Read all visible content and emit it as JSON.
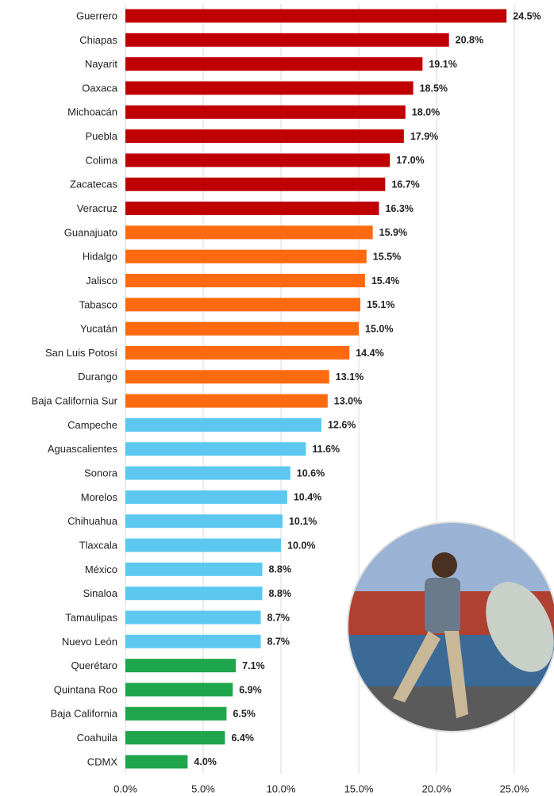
{
  "chart_data": {
    "type": "bar",
    "orientation": "horizontal",
    "categories": [
      "Guerrero",
      "Chiapas",
      "Nayarit",
      "Oaxaca",
      "Michoacán",
      "Puebla",
      "Colima",
      "Zacatecas",
      "Veracruz",
      "Guanajuato",
      "Hidalgo",
      "Jalisco",
      "Tabasco",
      "Yucatán",
      "San Luis Potosí",
      "Durango",
      "Baja California Sur",
      "Campeche",
      "Aguascalientes",
      "Sonora",
      "Morelos",
      "Chihuahua",
      "Tlaxcala",
      "México",
      "Sinaloa",
      "Tamaulipas",
      "Nuevo León",
      "Querétaro",
      "Quintana Roo",
      "Baja California",
      "Coahuila",
      "CDMX"
    ],
    "values": [
      24.5,
      20.8,
      19.1,
      18.5,
      18.0,
      17.9,
      17.0,
      16.7,
      16.3,
      15.9,
      15.5,
      15.4,
      15.1,
      15.0,
      14.4,
      13.1,
      13.0,
      12.6,
      11.6,
      10.6,
      10.4,
      10.1,
      10.0,
      8.8,
      8.8,
      8.7,
      8.7,
      7.1,
      6.9,
      6.5,
      6.4,
      4.0
    ],
    "value_labels": [
      "24.5%",
      "20.8%",
      "19.1%",
      "18.5%",
      "18.0%",
      "17.9%",
      "17.0%",
      "16.7%",
      "16.3%",
      "15.9%",
      "15.5%",
      "15.4%",
      "15.1%",
      "15.0%",
      "14.4%",
      "13.1%",
      "13.0%",
      "12.6%",
      "11.6%",
      "10.6%",
      "10.4%",
      "10.1%",
      "10.0%",
      "8.8%",
      "8.8%",
      "8.7%",
      "8.7%",
      "7.1%",
      "6.9%",
      "6.5%",
      "6.4%",
      "4.0%"
    ],
    "colors": [
      "#c00000",
      "#c00000",
      "#c00000",
      "#c00000",
      "#c00000",
      "#c00000",
      "#c00000",
      "#c00000",
      "#c00000",
      "#ff6a10",
      "#ff6a10",
      "#ff6a10",
      "#ff6a10",
      "#ff6a10",
      "#ff6a10",
      "#ff6a10",
      "#ff6a10",
      "#5cc8f0",
      "#5cc8f0",
      "#5cc8f0",
      "#5cc8f0",
      "#5cc8f0",
      "#5cc8f0",
      "#5cc8f0",
      "#5cc8f0",
      "#5cc8f0",
      "#5cc8f0",
      "#1fa64a",
      "#1fa64a",
      "#1fa64a",
      "#1fa64a",
      "#1fa64a"
    ],
    "xlim": [
      0,
      25
    ],
    "xticks": [
      {
        "value": 0,
        "label": "0.0%"
      },
      {
        "value": 5,
        "label": "5.0%"
      },
      {
        "value": 10,
        "label": "10.0%"
      },
      {
        "value": 15,
        "label": "15.0%"
      },
      {
        "value": 20,
        "label": "20.0%"
      },
      {
        "value": 25,
        "label": "25.0%"
      }
    ],
    "grid": true
  }
}
